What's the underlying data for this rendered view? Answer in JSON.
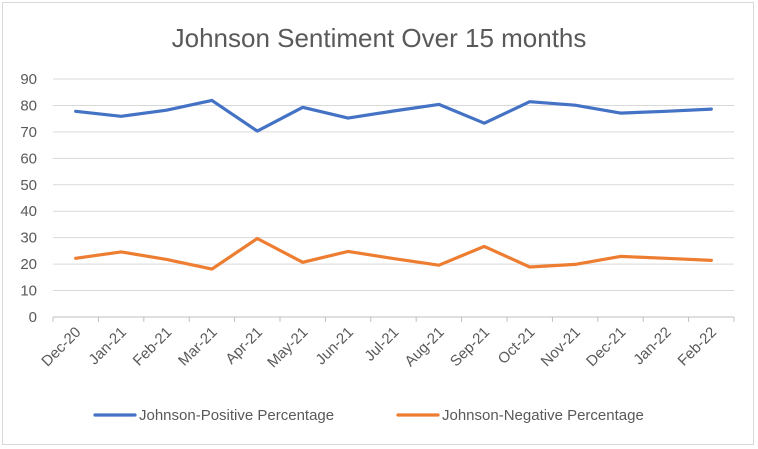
{
  "chart_data": {
    "type": "line",
    "title": "Johnson Sentiment Over 15 months",
    "xlabel": "",
    "ylabel": "",
    "ylim": [
      0,
      90
    ],
    "yticks": [
      0,
      10,
      20,
      30,
      40,
      50,
      60,
      70,
      80,
      90
    ],
    "grid": true,
    "legend_position": "bottom",
    "categories": [
      "Dec-20",
      "Jan-21",
      "Feb-21",
      "Mar-21",
      "Apr-21",
      "May-21",
      "Jun-21",
      "Jul-21",
      "Aug-21",
      "Sep-21",
      "Oct-21",
      "Nov-21",
      "Dec-21",
      "Jan-22",
      "Feb-22"
    ],
    "series": [
      {
        "name": "Johnson-Positive Percentage",
        "color": "#4472c4",
        "values": [
          77.8,
          75.9,
          78.2,
          81.9,
          70.3,
          79.3,
          75.2,
          77.9,
          80.4,
          73.3,
          81.4,
          80.1,
          77.1,
          77.8,
          78.6
        ]
      },
      {
        "name": "Johnson-Negative Percentage",
        "color": "#ed7d31",
        "values": [
          22.2,
          24.6,
          21.8,
          18.1,
          29.7,
          20.7,
          24.8,
          22.1,
          19.6,
          26.7,
          18.9,
          19.9,
          22.9,
          22.2,
          21.4
        ]
      }
    ]
  }
}
